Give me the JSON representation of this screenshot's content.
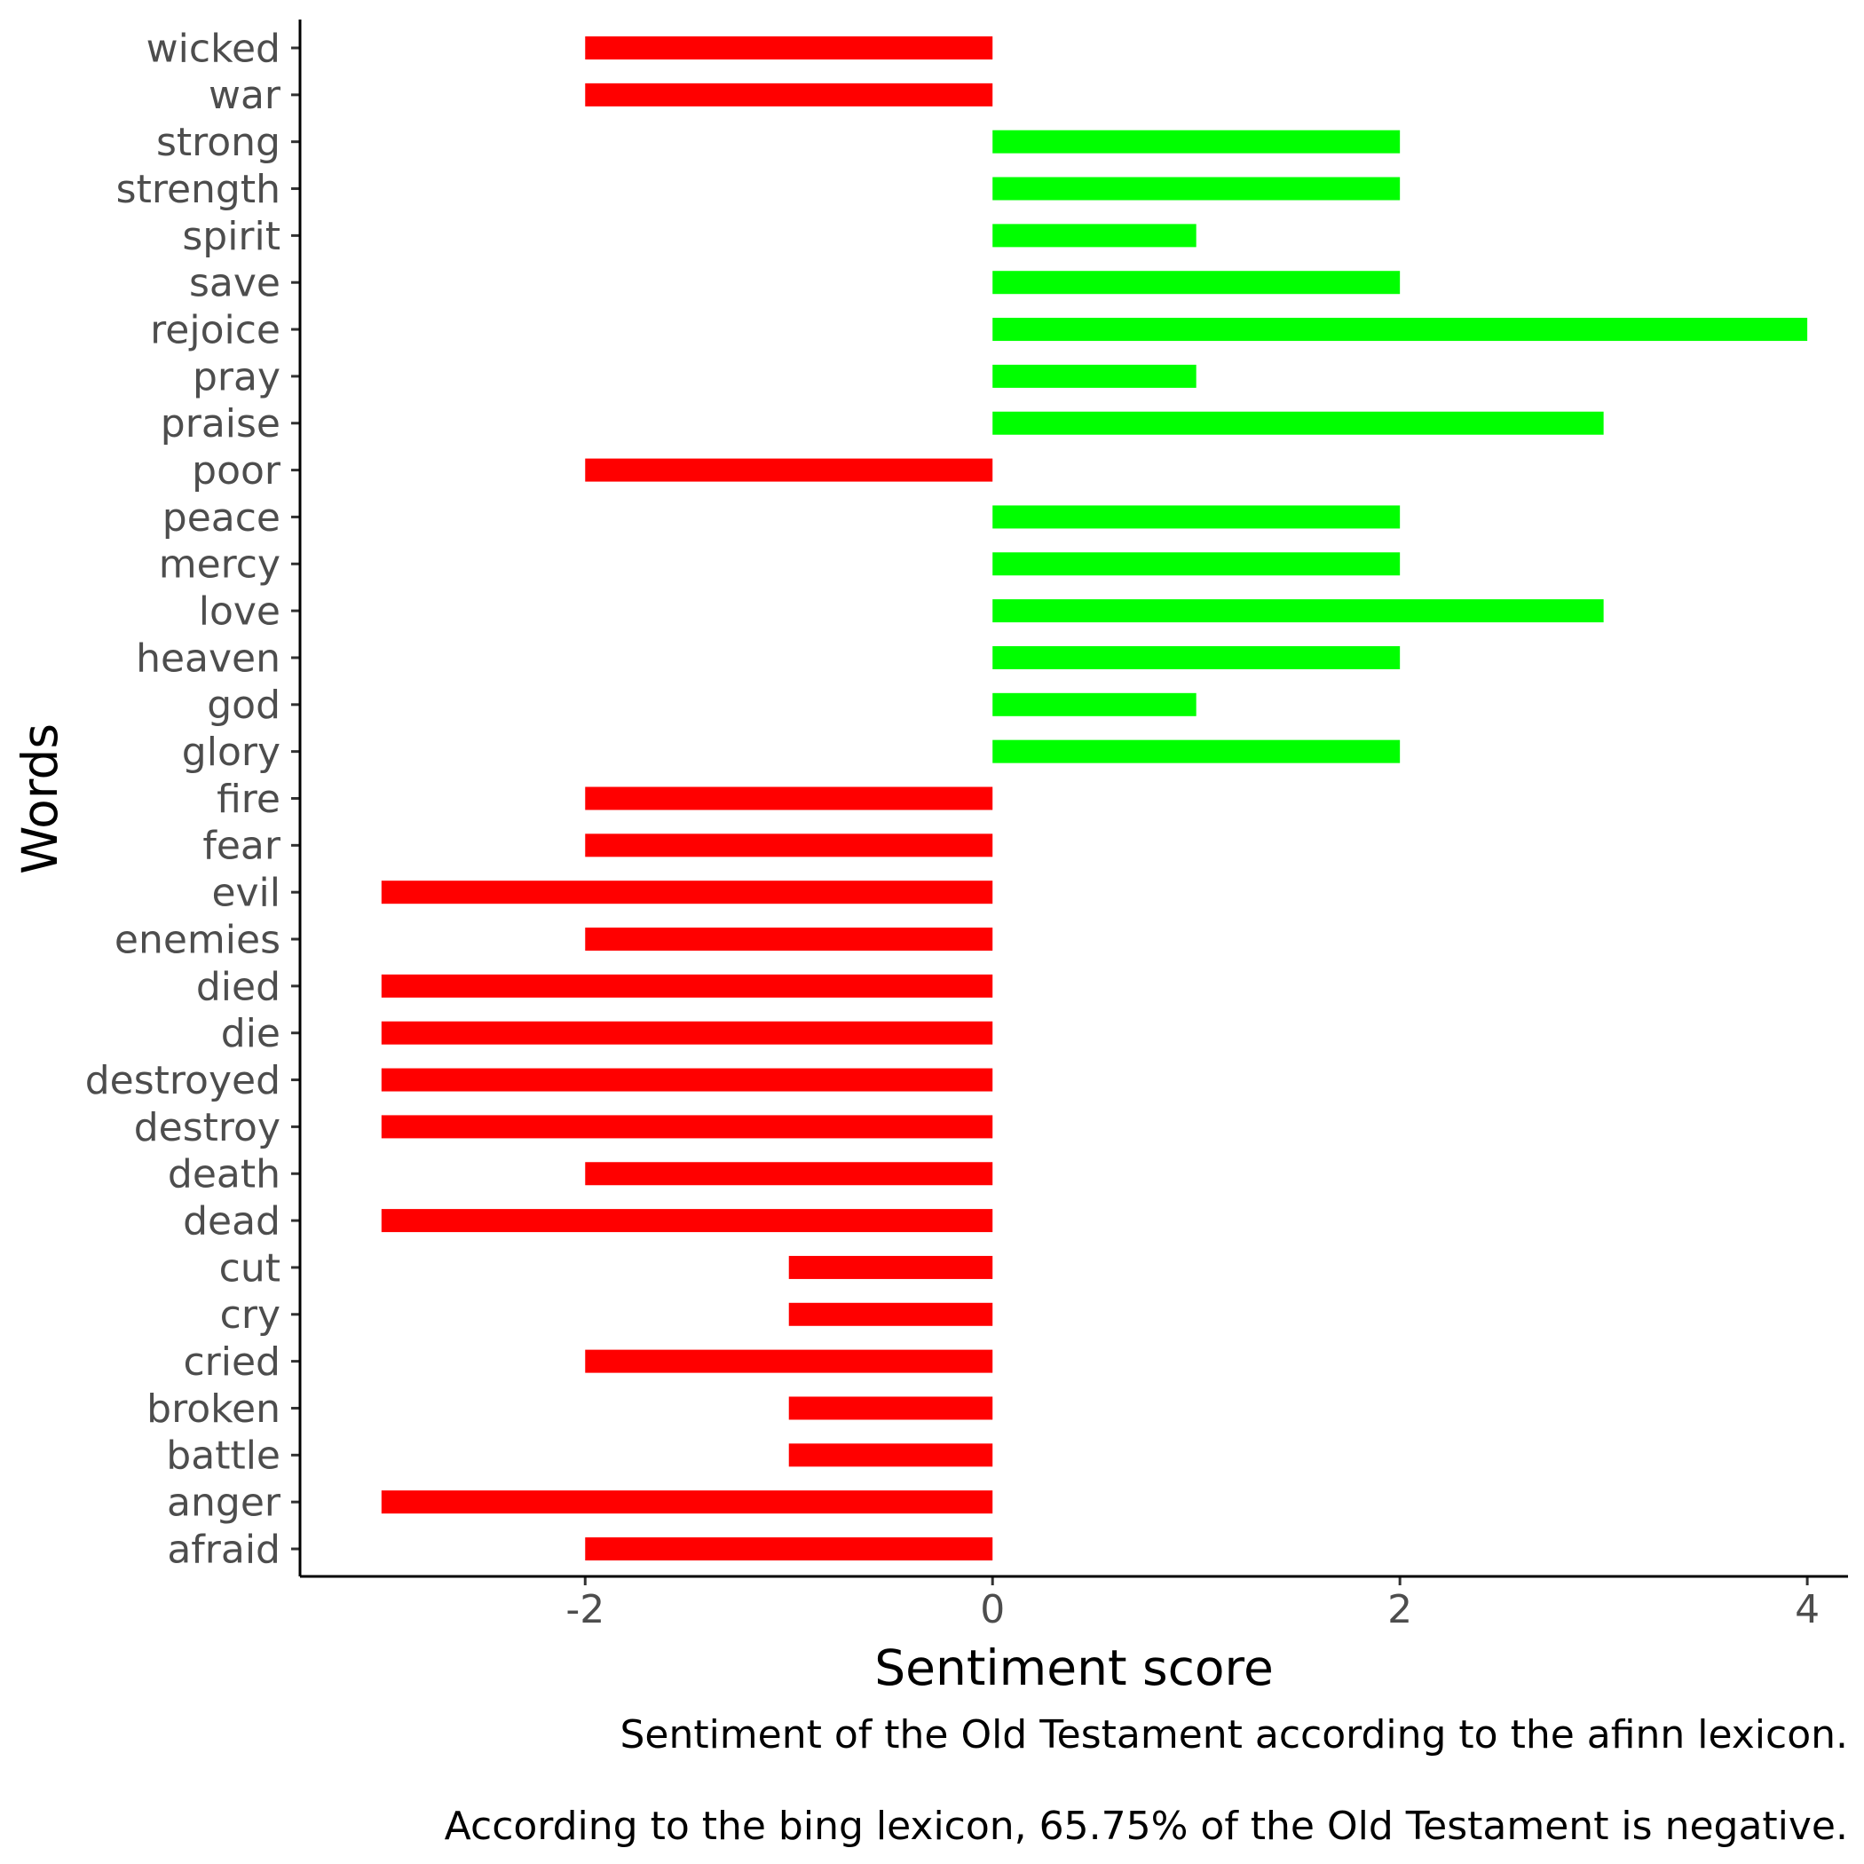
{
  "chart_data": {
    "type": "bar",
    "orientation": "horizontal",
    "xlabel": "Sentiment score",
    "ylabel": "Words",
    "xlim": [
      -3.4,
      4.2
    ],
    "x_ticks": [
      -2,
      0,
      2,
      4
    ],
    "x_tick_labels": [
      "-2",
      "0",
      "2",
      "4"
    ],
    "grid": false,
    "legend": "none",
    "positive_color": "#00ff00",
    "negative_color": "#ff0000",
    "categories": [
      "wicked",
      "war",
      "strong",
      "strength",
      "spirit",
      "save",
      "rejoice",
      "pray",
      "praise",
      "poor",
      "peace",
      "mercy",
      "love",
      "heaven",
      "god",
      "glory",
      "fire",
      "fear",
      "evil",
      "enemies",
      "died",
      "die",
      "destroyed",
      "destroy",
      "death",
      "dead",
      "cut",
      "cry",
      "cried",
      "broken",
      "battle",
      "anger",
      "afraid"
    ],
    "values": [
      -2,
      -2,
      2,
      2,
      1,
      2,
      4,
      1,
      3,
      -2,
      2,
      2,
      3,
      2,
      1,
      2,
      -2,
      -2,
      -3,
      -2,
      -3,
      -3,
      -3,
      -3,
      -2,
      -3,
      -1,
      -1,
      -2,
      -1,
      -1,
      -3,
      -2
    ],
    "caption_lines": [
      "Sentiment of the Old Testament according to the afinn lexicon.",
      "According to the bing lexicon, 65.75% of the Old Testament is negative."
    ]
  }
}
